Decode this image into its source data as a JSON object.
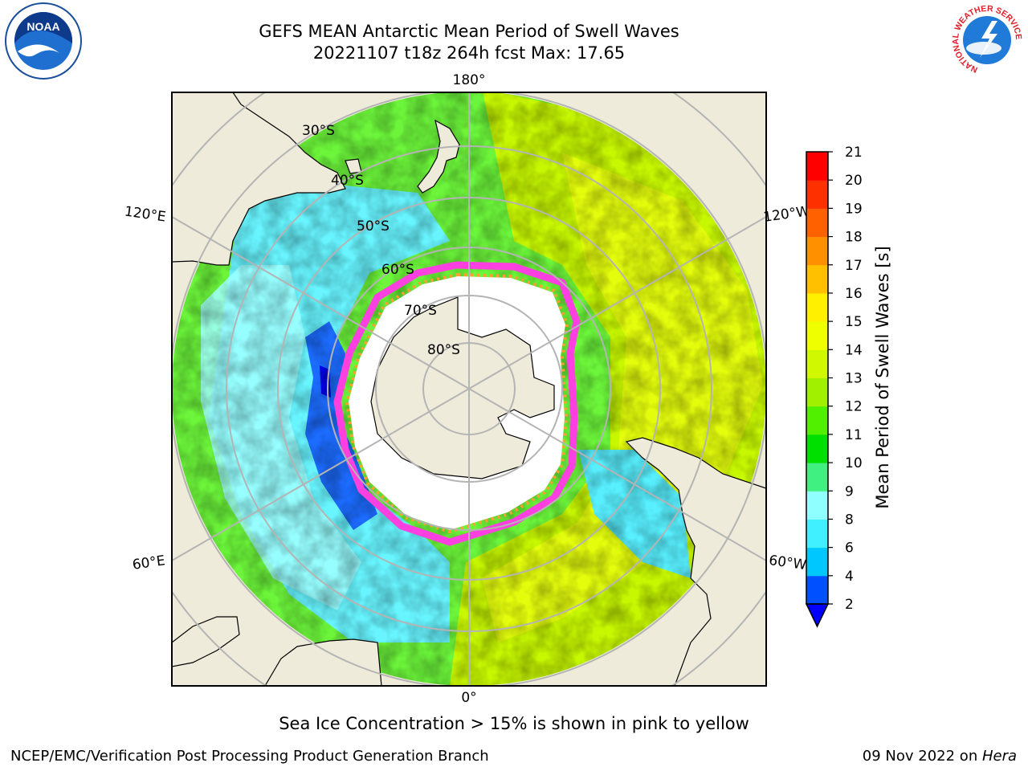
{
  "header": {
    "title_line1": "GEFS MEAN Antarctic Mean Period of Swell Waves",
    "title_line2": "20221107 t18z 264h fcst   Max: 17.65"
  },
  "map": {
    "projection": "south polar stereographic",
    "longitude_labels": [
      "180°",
      "120°E",
      "120°W",
      "60°E",
      "60°W",
      "0°"
    ],
    "latitude_labels": [
      "30°S",
      "40°S",
      "50°S",
      "60°S",
      "70°S",
      "80°S"
    ]
  },
  "colorbar": {
    "label": "Mean Period of Swell Waves [s]",
    "ticks": [
      "2",
      "4",
      "6",
      "8",
      "9",
      "10",
      "11",
      "12",
      "13",
      "14",
      "15",
      "16",
      "17",
      "18",
      "19",
      "20",
      "21"
    ],
    "colors": [
      "#0050ff",
      "#00c8ff",
      "#40f0ff",
      "#90ffff",
      "#40f080",
      "#00e000",
      "#50f000",
      "#a0f000",
      "#d0f800",
      "#f0ff00",
      "#fff000",
      "#ffc000",
      "#ff9000",
      "#ff6000",
      "#ff3000",
      "#ff0000"
    ],
    "under_color": "#0000ff"
  },
  "note": "Sea Ice Concentration > 15% is shown in pink to yellow",
  "footer": {
    "left": "NCEP/EMC/Verification Post Processing Product Generation Branch",
    "right_date": "09 Nov 2022 on ",
    "right_host": "Hera"
  },
  "logos": {
    "noaa_text": "NOAA",
    "nws_ring_text": "NATIONAL WEATHER SERVICE"
  }
}
